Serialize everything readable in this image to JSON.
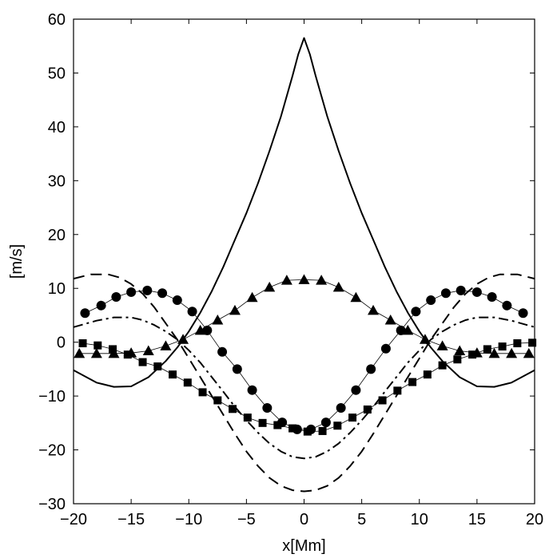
{
  "chart_data": {
    "type": "line",
    "title": "",
    "xlabel": "x[Mm]",
    "ylabel": "[m/s]",
    "xlim": [
      -20,
      20
    ],
    "ylim": [
      -30,
      60
    ],
    "xticks": [
      -20,
      -15,
      -10,
      -5,
      0,
      5,
      10,
      15,
      20
    ],
    "yticks": [
      -30,
      -20,
      -10,
      0,
      10,
      20,
      30,
      40,
      50,
      60
    ],
    "xtick_labels": [
      "−20",
      "−15",
      "−10",
      "−5",
      "0",
      "5",
      "10",
      "15",
      "20"
    ],
    "ytick_labels": [
      "−30",
      "−20",
      "−10",
      "0",
      "10",
      "20",
      "30",
      "40",
      "50",
      "60"
    ],
    "grid": false,
    "legend": "none",
    "series": [
      {
        "style": "solid",
        "x": [
          -20,
          -18,
          -16.5,
          -15,
          -13.5,
          -12,
          -11,
          -10,
          -9,
          -8,
          -7,
          -6,
          -5,
          -4,
          -3,
          -2,
          -1,
          -0.5,
          0,
          0.5,
          1,
          2,
          3,
          4,
          5,
          6,
          7,
          8,
          9,
          10,
          11,
          12,
          13.5,
          15,
          16.5,
          18,
          20
        ],
        "y": [
          -5.2,
          -7.5,
          -8.3,
          -8.2,
          -6.5,
          -3.5,
          -1,
          2,
          5.5,
          9.5,
          14,
          19,
          24,
          29.5,
          35.5,
          42,
          49.5,
          53.5,
          56.5,
          53.5,
          49.5,
          42,
          35.5,
          29.5,
          24,
          19,
          14,
          9.5,
          5.5,
          2,
          -1,
          -3.5,
          -6.5,
          -8.2,
          -8.3,
          -7.5,
          -5.2
        ]
      },
      {
        "style": "dashed",
        "x": [
          -20,
          -18.5,
          -17,
          -16,
          -15,
          -14,
          -13,
          -12,
          -11,
          -10,
          -9,
          -8,
          -7,
          -6,
          -5,
          -4,
          -3,
          -2,
          -1,
          0,
          1,
          2,
          3,
          4,
          5,
          6,
          7,
          8,
          9,
          10,
          11,
          12,
          13,
          14,
          15,
          16,
          17,
          18.5,
          20
        ],
        "y": [
          11.8,
          12.6,
          12.6,
          12,
          10.8,
          9,
          6.5,
          3.5,
          0.5,
          -3,
          -6.5,
          -10,
          -13.5,
          -17,
          -20.3,
          -23,
          -25.2,
          -26.7,
          -27.5,
          -27.7,
          -27.5,
          -26.7,
          -25.2,
          -23,
          -20.3,
          -17,
          -13.5,
          -10,
          -6.5,
          -3,
          0.5,
          3.5,
          6.5,
          9,
          10.8,
          12,
          12.6,
          12.6,
          11.8
        ]
      },
      {
        "style": "dashdot",
        "x": [
          -20,
          -18,
          -16.5,
          -15,
          -14,
          -13,
          -12,
          -11,
          -10,
          -9,
          -8,
          -7,
          -6,
          -5,
          -4,
          -3,
          -2,
          -1,
          0,
          1,
          2,
          3,
          4,
          5,
          6,
          7,
          8,
          9,
          10,
          11,
          12,
          13,
          14,
          15,
          16.5,
          18,
          20
        ],
        "y": [
          2.8,
          4,
          4.6,
          4.6,
          4.1,
          3.2,
          2,
          0.5,
          -1.5,
          -3.8,
          -6.5,
          -9.2,
          -12,
          -14.5,
          -16.8,
          -18.8,
          -20.3,
          -21.3,
          -21.6,
          -21.3,
          -20.3,
          -18.8,
          -16.8,
          -14.5,
          -12,
          -9.2,
          -6.5,
          -3.8,
          -1.5,
          0.5,
          2,
          3.2,
          4.1,
          4.6,
          4.6,
          4,
          2.8
        ]
      },
      {
        "marker": "circle",
        "x": [
          -19,
          -17.6,
          -16.3,
          -15,
          -13.6,
          -12.3,
          -11,
          -9.7,
          -8.4,
          -7.1,
          -5.8,
          -4.5,
          -3.2,
          -1.9,
          -0.6,
          0.6,
          1.9,
          3.2,
          4.5,
          5.8,
          7.1,
          8.4,
          9.7,
          11,
          12.3,
          13.6,
          15,
          16.3,
          17.6,
          19
        ],
        "y": [
          5.4,
          6.8,
          8.4,
          9.3,
          9.6,
          9.1,
          7.8,
          5.7,
          2.2,
          -1.8,
          -5,
          -8.9,
          -12.2,
          -14.9,
          -16.2,
          -16.2,
          -14.9,
          -12.2,
          -8.9,
          -5,
          -1.2,
          2.2,
          5.7,
          7.8,
          9.1,
          9.6,
          9.3,
          8.4,
          6.8,
          5.4
        ]
      },
      {
        "marker": "triangle",
        "x": [
          -19.5,
          -18,
          -16.5,
          -15,
          -13.5,
          -12,
          -10.5,
          -9,
          -7.5,
          -6,
          -4.5,
          -3,
          -1.5,
          0,
          1.5,
          3,
          4.5,
          6,
          7.5,
          9,
          10.5,
          12,
          13.5,
          15,
          16.5,
          18,
          19.5
        ],
        "y": [
          -2.1,
          -2.1,
          -2.1,
          -2,
          -1.6,
          -0.7,
          0.5,
          2.2,
          4.1,
          5.9,
          8.3,
          10.2,
          11.5,
          11.6,
          11.5,
          10.2,
          8.3,
          5.9,
          4.1,
          2.2,
          0.5,
          -0.7,
          -1.6,
          -2,
          -2.1,
          -2.1,
          -2.1
        ]
      },
      {
        "marker": "square",
        "x": [
          -19.2,
          -17.9,
          -16.6,
          -15.3,
          -14,
          -12.7,
          -11.4,
          -10.1,
          -8.8,
          -7.5,
          -6.2,
          -4.9,
          -3.6,
          -2.3,
          -1,
          0.3,
          1.6,
          2.9,
          4.2,
          5.5,
          6.8,
          8.1,
          9.4,
          10.7,
          12,
          13.3,
          14.6,
          15.9,
          17.2,
          18.5,
          19.8
        ],
        "y": [
          -0.2,
          -0.6,
          -1.3,
          -2.3,
          -3.7,
          -4.5,
          -6,
          -7.5,
          -9.3,
          -10.8,
          -12.4,
          -14,
          -15,
          -15.4,
          -16,
          -16.6,
          -16.5,
          -15.5,
          -14,
          -12.5,
          -10.8,
          -9,
          -7.4,
          -6,
          -4.3,
          -3.2,
          -2.3,
          -1.3,
          -0.8,
          -0.2,
          -0.1
        ]
      }
    ]
  }
}
